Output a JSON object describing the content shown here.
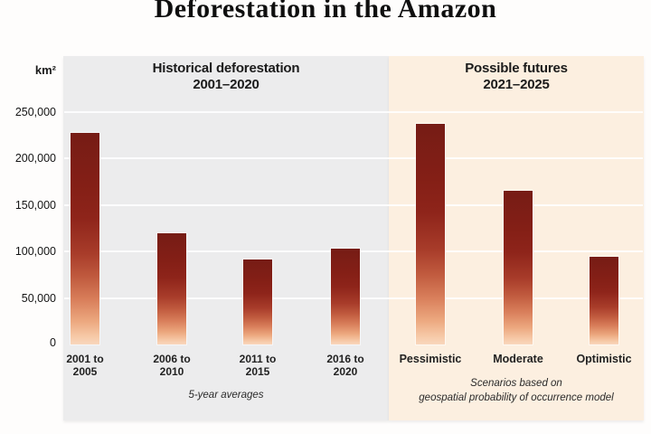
{
  "title": "Deforestation in the Amazon",
  "y_axis": {
    "unit_label": "km²",
    "tick_labels": [
      "250,000",
      "200,000",
      "150,000",
      "100,000",
      "50,000",
      "0"
    ],
    "tick_values": [
      250000,
      200000,
      150000,
      100000,
      50000,
      0
    ]
  },
  "panels": [
    {
      "header_line1": "Historical deforestation",
      "header_line2": "2001–2020",
      "bg_color": "#ececed",
      "bars": [
        {
          "label_lines": [
            "2001 to",
            "2005"
          ],
          "value": 228000
        },
        {
          "label_lines": [
            "2006 to",
            "2010"
          ],
          "value": 120000
        },
        {
          "label_lines": [
            "2011 to",
            "2015"
          ],
          "value": 91000
        },
        {
          "label_lines": [
            "2016 to",
            "2020"
          ],
          "value": 103000
        }
      ],
      "footnote_lines": [
        "5-year averages"
      ]
    },
    {
      "header_line1": "Possible futures",
      "header_line2": "2021–2025",
      "bg_color": "#fcefe0",
      "bars": [
        {
          "label_lines": [
            "Pessimistic"
          ],
          "value": 237000
        },
        {
          "label_lines": [
            "Moderate"
          ],
          "value": 165000
        },
        {
          "label_lines": [
            "Optimistic"
          ],
          "value": 94000
        }
      ],
      "footnote_lines": [
        "Scenarios based on",
        "geospatial probability of occurrence model"
      ]
    }
  ],
  "colors": {
    "bar_gradient_top": "#761c15",
    "bar_gradient_bottom": "#f9d7bd",
    "panel_historical_bg": "#ececed",
    "panel_futures_bg": "#fcefe0",
    "gridline": "#ffffff",
    "title_text": "#0f0f0f"
  },
  "chart_data": {
    "type": "bar",
    "title": "Deforestation in the Amazon",
    "xlabel": "",
    "ylabel": "km²",
    "ylim": [
      0,
      250000
    ],
    "yticks": [
      0,
      50000,
      100000,
      150000,
      200000,
      250000
    ],
    "grid": true,
    "legend_position": "none",
    "groups": [
      {
        "name": "Historical deforestation 2001–2020",
        "categories": [
          "2001 to 2005",
          "2006 to 2010",
          "2011 to 2015",
          "2016 to 2020"
        ],
        "values": [
          228000,
          120000,
          91000,
          103000
        ],
        "annotation": "5-year averages"
      },
      {
        "name": "Possible futures 2021–2025",
        "categories": [
          "Pessimistic",
          "Moderate",
          "Optimistic"
        ],
        "values": [
          237000,
          165000,
          94000
        ],
        "annotation": "Scenarios based on geospatial probability of occurrence model"
      }
    ]
  }
}
